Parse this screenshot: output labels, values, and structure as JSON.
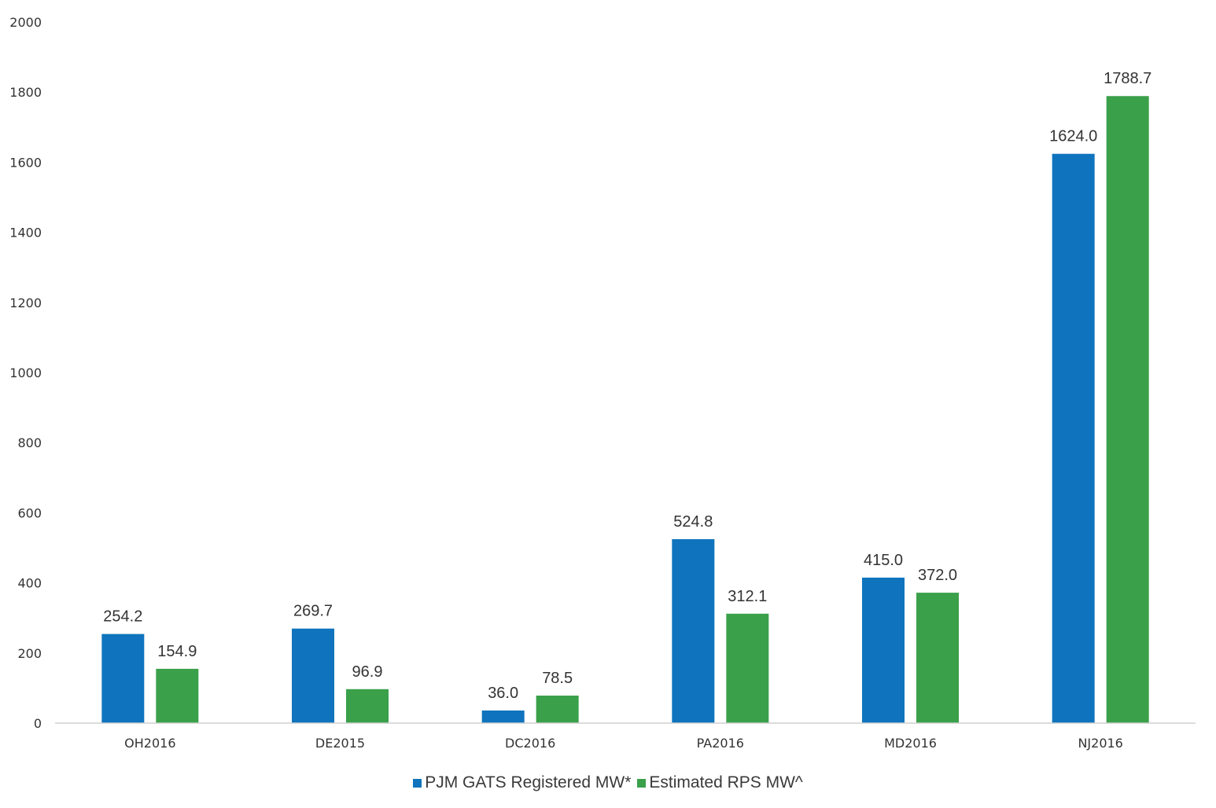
{
  "chart_data": {
    "type": "bar",
    "title": "",
    "xlabel": "",
    "ylabel": "",
    "categories": [
      "OH2016",
      "DE2015",
      "DC2016",
      "PA2016",
      "MD2016",
      "NJ2016"
    ],
    "series": [
      {
        "name": "PJM GATS Registered MW*",
        "color": "#0f74bd",
        "values": [
          254.2,
          269.7,
          36.0,
          524.8,
          415.0,
          1624.0
        ],
        "labels": [
          "254.2",
          "269.7",
          "36.0",
          "524.8",
          "415.0",
          "1624.0"
        ]
      },
      {
        "name": "Estimated RPS MW^",
        "color": "#3aa04a",
        "values": [
          154.9,
          96.9,
          78.5,
          312.1,
          372.0,
          1788.7
        ],
        "labels": [
          "154.9",
          "96.9",
          "78.5",
          "312.1",
          "372.0",
          "1788.7"
        ]
      }
    ],
    "ylim": [
      0,
      2000
    ],
    "yticks": [
      "0",
      "200",
      "400",
      "600",
      "800",
      "1000",
      "1200",
      "1400",
      "1600",
      "1800",
      "2000"
    ],
    "grid": false,
    "legend_position": "bottom"
  }
}
